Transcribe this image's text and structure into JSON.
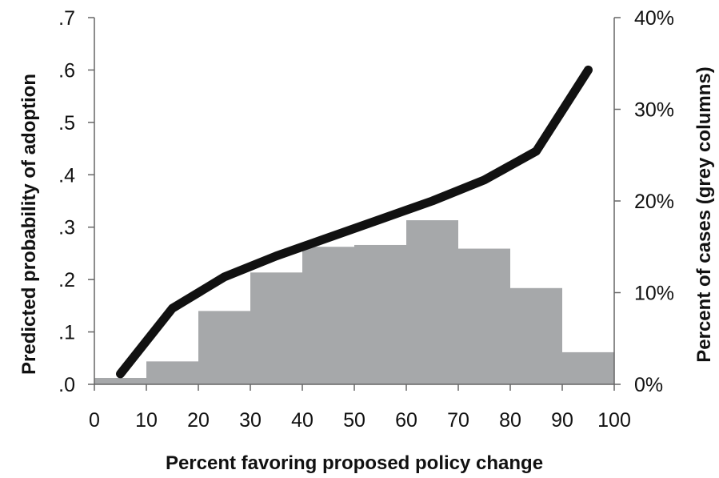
{
  "chart_data": {
    "type": "bar+line",
    "xlabel": "Percent favoring proposed policy change",
    "ylabel_left": "Predicted probability of adoption",
    "ylabel_right": "Percent of cases (grey columns)",
    "x_ticks": [
      "0",
      "10",
      "20",
      "30",
      "40",
      "50",
      "60",
      "70",
      "80",
      "90",
      "100"
    ],
    "y_left_ticks": [
      ".0",
      ".1",
      ".2",
      ".3",
      ".4",
      ".5",
      ".6",
      ".7"
    ],
    "y_right_ticks": [
      "0%",
      "10%",
      "20%",
      "30%",
      "40%"
    ],
    "xlim": [
      0,
      100
    ],
    "ylim_left": [
      0,
      0.7
    ],
    "ylim_right": [
      0,
      40
    ],
    "histogram": {
      "bin_edges": [
        0,
        10,
        20,
        30,
        40,
        50,
        60,
        70,
        80,
        90,
        100
      ],
      "values": [
        0.7,
        2.5,
        8.0,
        12.2,
        15.0,
        15.2,
        17.9,
        14.8,
        10.5,
        3.5
      ],
      "color": "#a6a8aa"
    },
    "line": {
      "x": [
        5,
        15,
        25,
        35,
        45,
        55,
        65,
        75,
        85,
        95
      ],
      "y": [
        0.02,
        0.145,
        0.205,
        0.245,
        0.28,
        0.315,
        0.35,
        0.39,
        0.445,
        0.6
      ],
      "color": "#111111"
    },
    "grid": false,
    "legend": "none"
  }
}
